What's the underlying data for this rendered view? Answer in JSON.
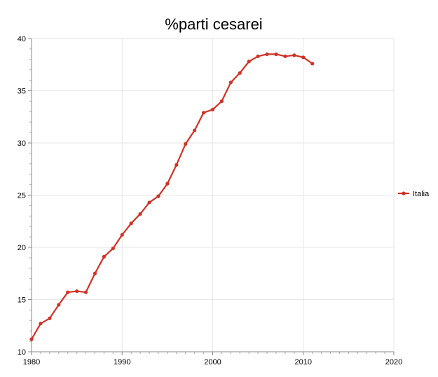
{
  "chart_data": {
    "type": "line",
    "title": "%parti cesarei",
    "xlabel": "",
    "ylabel": "",
    "xlim": [
      1980,
      2020
    ],
    "ylim": [
      10,
      40
    ],
    "x_ticks": [
      1980,
      1990,
      2000,
      2010,
      2020
    ],
    "y_ticks": [
      10,
      15,
      20,
      25,
      30,
      35,
      40
    ],
    "grid": true,
    "legend_position": "right",
    "series": [
      {
        "name": "Italia",
        "color": "#d03224",
        "x": [
          1980,
          1981,
          1982,
          1983,
          1984,
          1985,
          1986,
          1987,
          1988,
          1989,
          1990,
          1991,
          1992,
          1993,
          1994,
          1995,
          1996,
          1997,
          1998,
          1999,
          2000,
          2001,
          2002,
          2003,
          2004,
          2005,
          2006,
          2007,
          2008,
          2009,
          2010,
          2011
        ],
        "y": [
          11.2,
          12.7,
          13.2,
          14.5,
          15.7,
          15.8,
          15.7,
          17.5,
          19.1,
          19.9,
          21.2,
          22.3,
          23.2,
          24.3,
          24.9,
          26.1,
          27.9,
          29.9,
          31.2,
          32.9,
          33.2,
          34.0,
          35.8,
          36.7,
          37.8,
          38.3,
          38.5,
          38.5,
          38.3,
          38.4,
          38.2,
          37.6
        ]
      }
    ]
  }
}
